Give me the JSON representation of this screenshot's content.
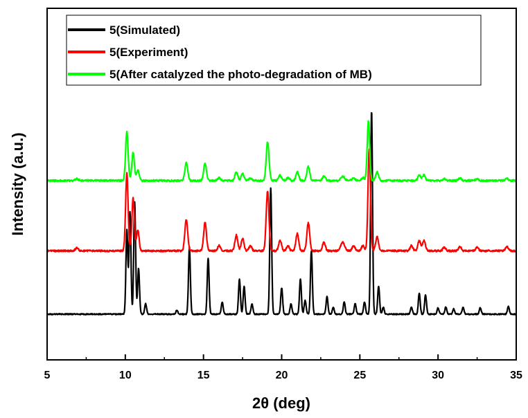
{
  "chart_data": {
    "type": "line",
    "xlabel": "2θ (deg)",
    "ylabel": "Intensity (a.u.)",
    "xlim": [
      5,
      35
    ],
    "ylim": [
      0,
      100
    ],
    "xticks": [
      5,
      10,
      15,
      20,
      25,
      30,
      35
    ],
    "yticks_shown": false,
    "grid": false,
    "legend_position": "top",
    "series": [
      {
        "name": "5(Simulated)",
        "color": "#000000",
        "baseline": 13,
        "noise": 0.3,
        "peaks": [
          [
            10.1,
            24,
            0.06
          ],
          [
            10.3,
            29,
            0.06
          ],
          [
            10.6,
            32,
            0.06
          ],
          [
            10.85,
            13,
            0.06
          ],
          [
            11.3,
            3,
            0.06
          ],
          [
            13.3,
            1.2,
            0.06
          ],
          [
            14.1,
            19,
            0.06
          ],
          [
            15.3,
            16,
            0.06
          ],
          [
            16.2,
            3.5,
            0.06
          ],
          [
            17.3,
            10,
            0.06
          ],
          [
            17.6,
            8,
            0.06
          ],
          [
            18.1,
            3,
            0.06
          ],
          [
            19.3,
            36,
            0.06
          ],
          [
            20.0,
            7.5,
            0.06
          ],
          [
            20.6,
            3,
            0.06
          ],
          [
            21.2,
            10,
            0.06
          ],
          [
            21.5,
            4,
            0.06
          ],
          [
            21.9,
            18,
            0.06
          ],
          [
            22.9,
            5,
            0.06
          ],
          [
            23.3,
            2,
            0.06
          ],
          [
            24.0,
            3.5,
            0.06
          ],
          [
            24.7,
            3,
            0.06
          ],
          [
            25.3,
            3.5,
            0.06
          ],
          [
            25.75,
            58,
            0.06
          ],
          [
            26.2,
            8,
            0.06
          ],
          [
            26.5,
            2,
            0.06
          ],
          [
            28.3,
            2,
            0.06
          ],
          [
            28.8,
            6,
            0.06
          ],
          [
            29.2,
            5.5,
            0.06
          ],
          [
            30.0,
            1.8,
            0.06
          ],
          [
            30.5,
            2,
            0.06
          ],
          [
            31.0,
            1.5,
            0.06
          ],
          [
            31.6,
            2,
            0.06
          ],
          [
            32.7,
            1.8,
            0.06
          ],
          [
            34.5,
            2.2,
            0.06
          ]
        ]
      },
      {
        "name": "5(Experiment)",
        "color": "#ff0000",
        "baseline": 31,
        "noise": 0.5,
        "peaks": [
          [
            6.9,
            0.8,
            0.1
          ],
          [
            10.1,
            22,
            0.08
          ],
          [
            10.5,
            15,
            0.08
          ],
          [
            10.8,
            6,
            0.08
          ],
          [
            13.9,
            9,
            0.09
          ],
          [
            15.1,
            8,
            0.09
          ],
          [
            16.0,
            1.5,
            0.09
          ],
          [
            17.1,
            4.5,
            0.09
          ],
          [
            17.5,
            3.5,
            0.09
          ],
          [
            18.0,
            1.5,
            0.09
          ],
          [
            19.1,
            17,
            0.09
          ],
          [
            19.9,
            3,
            0.09
          ],
          [
            20.4,
            1.5,
            0.09
          ],
          [
            21.0,
            5,
            0.09
          ],
          [
            21.7,
            8,
            0.09
          ],
          [
            22.7,
            2.5,
            0.09
          ],
          [
            23.9,
            2.5,
            0.12
          ],
          [
            24.6,
            1.5,
            0.09
          ],
          [
            25.2,
            1.5,
            0.09
          ],
          [
            25.6,
            29,
            0.08
          ],
          [
            26.1,
            4,
            0.09
          ],
          [
            28.3,
            1.5,
            0.09
          ],
          [
            28.8,
            2.8,
            0.09
          ],
          [
            29.1,
            3,
            0.09
          ],
          [
            30.4,
            1,
            0.09
          ],
          [
            31.4,
            1.2,
            0.09
          ],
          [
            32.5,
            1,
            0.09
          ],
          [
            34.4,
            1.2,
            0.09
          ]
        ]
      },
      {
        "name": "5(After catalyzed the photo-degradation of MB)",
        "color": "#00ff00",
        "baseline": 51,
        "noise": 0.5,
        "peaks": [
          [
            6.9,
            0.5,
            0.1
          ],
          [
            10.1,
            14,
            0.08
          ],
          [
            10.5,
            8,
            0.08
          ],
          [
            10.8,
            3,
            0.08
          ],
          [
            13.9,
            5,
            0.09
          ],
          [
            15.1,
            5,
            0.09
          ],
          [
            16.0,
            0.8,
            0.09
          ],
          [
            17.1,
            2.5,
            0.09
          ],
          [
            17.5,
            2,
            0.09
          ],
          [
            18.0,
            0.8,
            0.09
          ],
          [
            19.1,
            11,
            0.09
          ],
          [
            19.9,
            1.5,
            0.09
          ],
          [
            20.4,
            0.8,
            0.09
          ],
          [
            21.0,
            2.5,
            0.09
          ],
          [
            21.7,
            4,
            0.09
          ],
          [
            22.7,
            1.3,
            0.09
          ],
          [
            23.9,
            1.2,
            0.12
          ],
          [
            24.6,
            0.8,
            0.09
          ],
          [
            25.2,
            0.8,
            0.09
          ],
          [
            25.55,
            17,
            0.08
          ],
          [
            26.1,
            2.5,
            0.09
          ],
          [
            28.8,
            1.5,
            0.09
          ],
          [
            29.1,
            1.6,
            0.09
          ],
          [
            30.4,
            0.5,
            0.09
          ],
          [
            31.4,
            0.7,
            0.09
          ],
          [
            32.5,
            0.5,
            0.09
          ],
          [
            34.4,
            0.6,
            0.09
          ]
        ]
      }
    ]
  }
}
